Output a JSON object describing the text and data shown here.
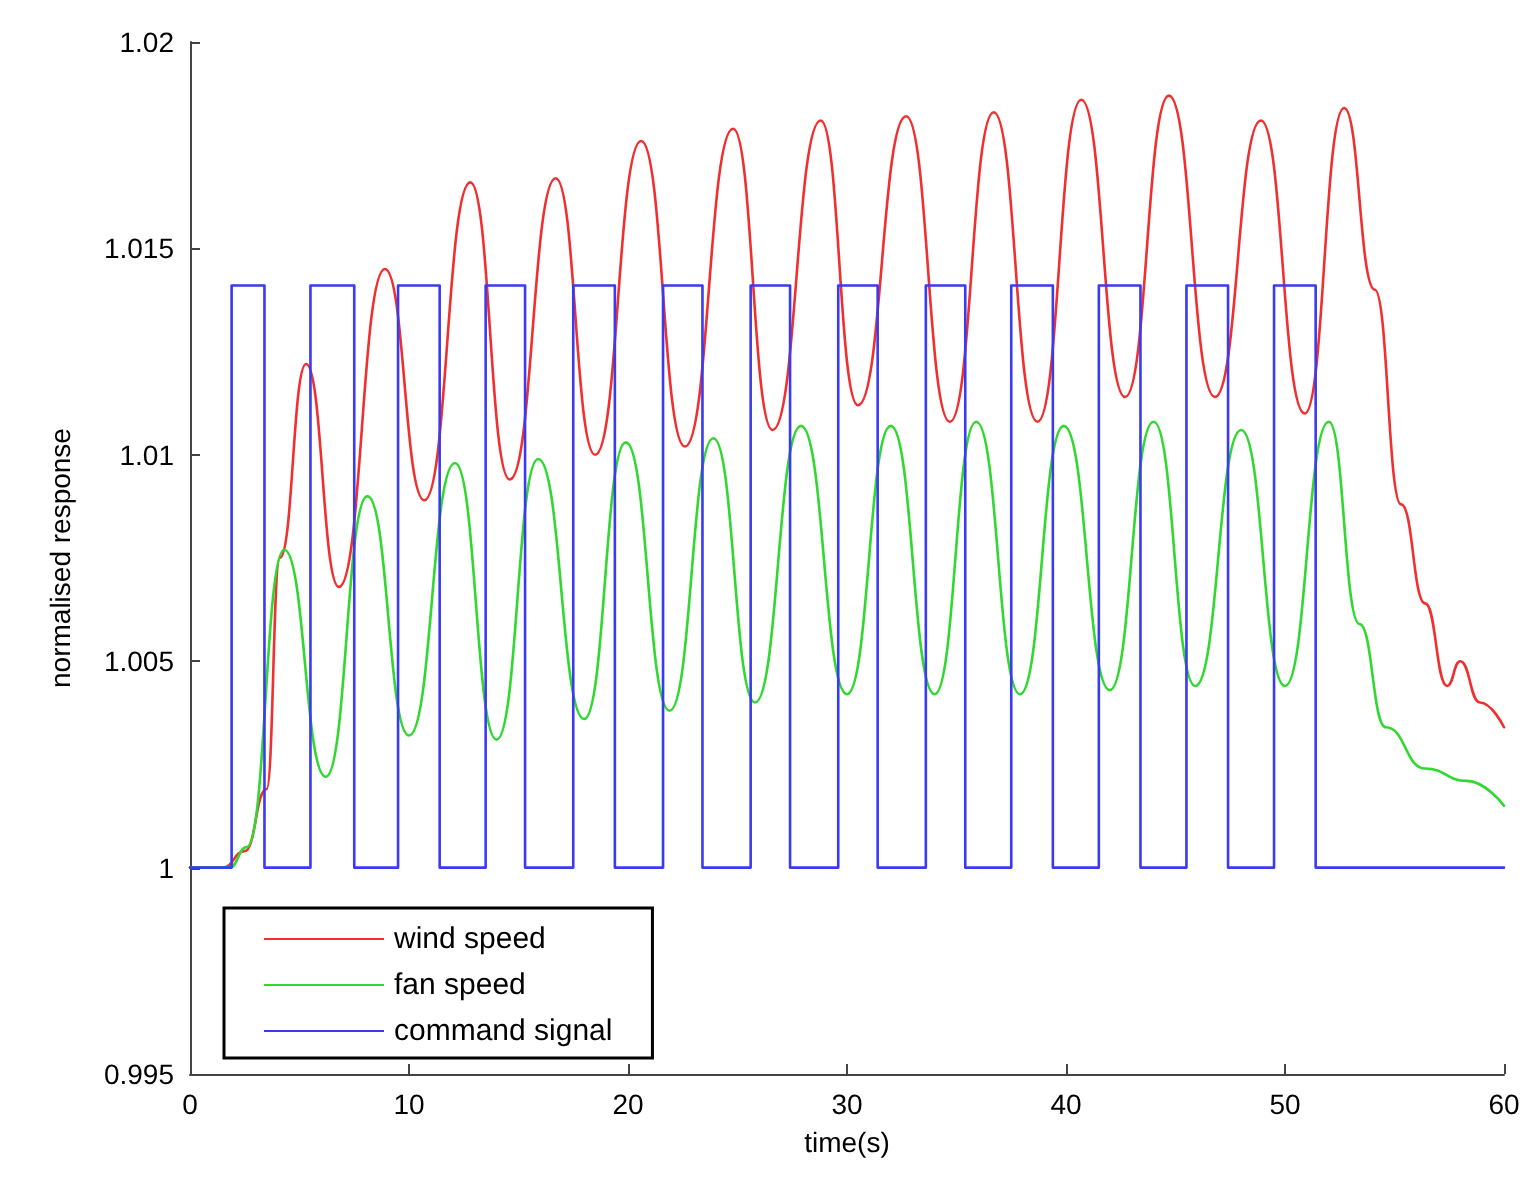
{
  "chart_data": {
    "type": "line",
    "xlabel": "time(s)",
    "ylabel": "normalised response",
    "xlim": [
      0,
      60
    ],
    "xticks": [
      0,
      10,
      20,
      30,
      40,
      50,
      60
    ],
    "ylim": [
      0.995,
      1.02
    ],
    "yticks": [
      0.995,
      1,
      1.005,
      1.01,
      1.015,
      1.02
    ],
    "grid": false,
    "legend": "bottom left",
    "marker": "none",
    "line_style": "solid",
    "series": [
      {
        "name": "wind speed",
        "color": "#f03030",
        "x": [
          0,
          1.5,
          2.5,
          3.5,
          4.1,
          5.3,
          6.8,
          8.9,
          10.7,
          12.8,
          14.6,
          16.7,
          18.5,
          20.6,
          22.6,
          24.8,
          26.6,
          28.8,
          30.5,
          32.7,
          34.7,
          36.7,
          38.7,
          40.7,
          42.7,
          44.7,
          46.8,
          48.9,
          50.9,
          52.7,
          54.1,
          55.3,
          56.4,
          57.4,
          58,
          58.9,
          60
        ],
        "values": [
          1,
          1,
          1.0004,
          1.0019,
          1.0075,
          1.0122,
          1.0068,
          1.0145,
          1.0089,
          1.0166,
          1.0094,
          1.0167,
          1.01,
          1.0176,
          1.0102,
          1.0179,
          1.0106,
          1.0181,
          1.0112,
          1.0182,
          1.0108,
          1.0183,
          1.0108,
          1.0186,
          1.0114,
          1.0187,
          1.0114,
          1.0181,
          1.011,
          1.0184,
          1.014,
          1.0088,
          1.0064,
          1.0044,
          1.005,
          1.004,
          1.0034
        ]
      },
      {
        "name": "fan speed",
        "color": "#30d830",
        "x": [
          0,
          1.8,
          2.6,
          4.3,
          6.2,
          8.1,
          10,
          12.1,
          14,
          15.9,
          18,
          19.9,
          21.9,
          23.9,
          25.8,
          27.9,
          30,
          32,
          34,
          35.9,
          37.9,
          39.9,
          42,
          44,
          45.9,
          48,
          50,
          52,
          53.4,
          54.6,
          56.4,
          58.3,
          60
        ],
        "values": [
          1,
          1,
          1.0005,
          1.0077,
          1.0022,
          1.009,
          1.0032,
          1.0098,
          1.0031,
          1.0099,
          1.0036,
          1.0103,
          1.0038,
          1.0104,
          1.004,
          1.0107,
          1.0042,
          1.0107,
          1.0042,
          1.0108,
          1.0042,
          1.0107,
          1.0043,
          1.0108,
          1.0044,
          1.0106,
          1.0044,
          1.0108,
          1.0059,
          1.0034,
          1.0024,
          1.0021,
          1.0015
        ]
      },
      {
        "name": "command signal",
        "color": "#3a3af0",
        "x": [
          0,
          1.9,
          1.9,
          3.4,
          3.4,
          5.5,
          5.5,
          7.5,
          7.5,
          9.5,
          9.5,
          11.4,
          11.4,
          13.5,
          13.5,
          15.3,
          15.3,
          17.5,
          17.5,
          19.4,
          19.4,
          21.6,
          21.6,
          23.4,
          23.4,
          25.6,
          25.6,
          27.4,
          27.4,
          29.6,
          29.6,
          31.4,
          31.4,
          33.6,
          33.6,
          35.4,
          35.4,
          37.5,
          37.5,
          39.4,
          39.4,
          41.5,
          41.5,
          43.4,
          43.4,
          45.5,
          45.5,
          47.4,
          47.4,
          49.5,
          49.5,
          51.4,
          51.4,
          60
        ],
        "values": [
          1,
          1,
          1.0141,
          1.0141,
          1,
          1,
          1.0141,
          1.0141,
          1,
          1,
          1.0141,
          1.0141,
          1,
          1,
          1.0141,
          1.0141,
          1,
          1,
          1.0141,
          1.0141,
          1,
          1,
          1.0141,
          1.0141,
          1,
          1,
          1.0141,
          1.0141,
          1,
          1,
          1.0141,
          1.0141,
          1,
          1,
          1.0141,
          1.0141,
          1,
          1,
          1.0141,
          1.0141,
          1,
          1,
          1.0141,
          1.0141,
          1,
          1,
          1.0141,
          1.0141,
          1,
          1,
          1.0141,
          1.0141,
          1,
          1
        ]
      }
    ]
  }
}
